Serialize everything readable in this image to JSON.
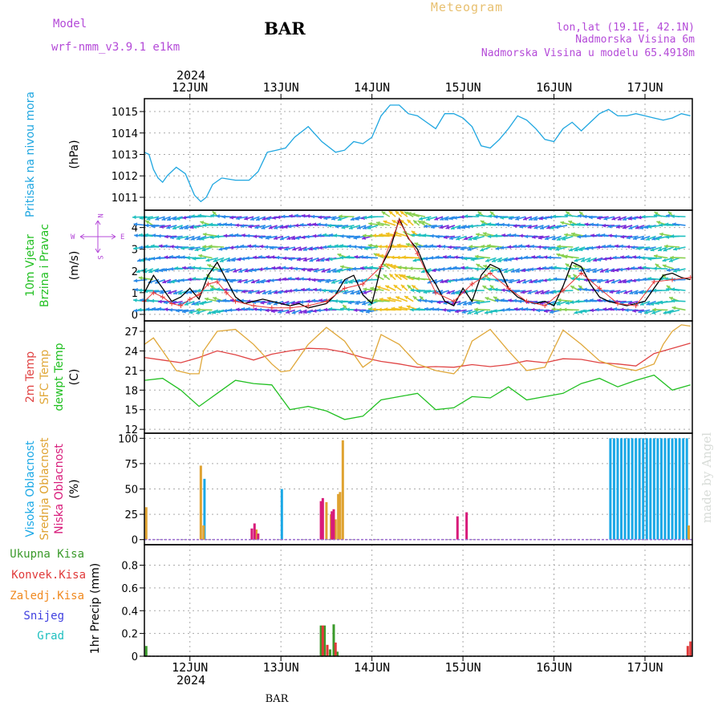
{
  "header": {
    "meteogram_label": "Meteogram",
    "model_label": "Model",
    "model_name": "wrf-nmm_v3.9.1 e1km",
    "station": "BAR",
    "lonlat": "lon,lat (19.1E, 42.1N)",
    "elevation": "Nadmorska Visina 6m",
    "model_elevation": "Nadmorska Visina u modelu 65.4918m",
    "year_top": "2024",
    "year_bottom": "2024",
    "footer_station": "BAR",
    "watermark": "made by Angel"
  },
  "colors": {
    "pressure": "#1ea6e0",
    "wind_speed": "#000000",
    "gust": "#e83838",
    "temp2m": "#e04444",
    "sfc_temp": "#e0a83a",
    "dewpt": "#22c022",
    "high_cloud": "#1aa8e6",
    "mid_cloud": "#dfa230",
    "low_cloud": "#d81b7a",
    "precip_total": "#3a9a2a",
    "precip_conv": "#e03a3a",
    "precip_frozen": "#f08a20",
    "snow": "#4040e0",
    "hail": "#20c0c0",
    "label_purple": "#b44ad8",
    "label_orange": "#e8c070"
  },
  "chart_data": [
    {
      "type": "line",
      "panel": "pressure",
      "ylabel_lines": [
        "Pritisak na nivou mora"
      ],
      "unit": "(hPa)",
      "ylim": [
        1010.4,
        1015.6
      ],
      "yticks": [
        1011,
        1012,
        1013,
        1014,
        1015
      ],
      "x_start_days": 0,
      "grid": true,
      "series": [
        {
          "color_key": "pressure",
          "x": [
            0,
            0.05,
            0.1,
            0.15,
            0.2,
            0.25,
            0.35,
            0.45,
            0.55,
            0.62,
            0.68,
            0.75,
            0.85,
            1.0,
            1.15,
            1.25,
            1.35,
            1.45,
            1.55,
            1.65,
            1.8,
            1.95,
            2.1,
            2.2,
            2.3,
            2.4,
            2.5,
            2.6,
            2.7,
            2.8,
            2.9,
            3.0,
            3.1,
            3.2,
            3.3,
            3.4,
            3.5,
            3.6,
            3.7,
            3.8,
            3.9,
            4.0,
            4.1,
            4.2,
            4.3,
            4.4,
            4.5,
            4.6,
            4.7,
            4.8,
            4.9,
            5.0,
            5.1,
            5.2,
            5.3,
            5.4,
            5.5,
            5.6,
            5.7,
            5.8,
            5.9,
            6.0
          ],
          "y": [
            1013.1,
            1013.0,
            1012.3,
            1011.9,
            1011.7,
            1012.0,
            1012.4,
            1012.1,
            1011.1,
            1010.8,
            1011.0,
            1011.6,
            1011.9,
            1011.8,
            1011.8,
            1012.2,
            1013.1,
            1013.2,
            1013.3,
            1013.8,
            1014.3,
            1013.6,
            1013.1,
            1013.2,
            1013.6,
            1013.5,
            1013.8,
            1014.8,
            1015.3,
            1015.3,
            1014.9,
            1014.8,
            1014.5,
            1014.2,
            1014.9,
            1014.9,
            1014.7,
            1014.3,
            1013.4,
            1013.3,
            1013.7,
            1014.2,
            1014.8,
            1014.6,
            1014.2,
            1013.7,
            1013.6,
            1014.2,
            1014.5,
            1014.1,
            1014.5,
            1014.9,
            1015.1,
            1014.8,
            1014.8,
            1014.9,
            1014.8,
            1014.7,
            1014.6,
            1014.7,
            1014.9,
            1014.8
          ]
        }
      ]
    },
    {
      "type": "line",
      "panel": "wind",
      "ylabel_lines": [
        "10m Vjetar",
        "Brzina i Pravac"
      ],
      "unit": "(m/s)",
      "compass": {
        "n": "N",
        "s": "S",
        "e": "E",
        "w": "W"
      },
      "ylim": [
        -0.3,
        4.8
      ],
      "yticks": [
        0,
        1,
        2,
        3,
        4
      ],
      "x_start_days": 0,
      "grid": true,
      "barbs": {
        "rows": [
          0.2,
          0.6,
          1.1,
          1.6,
          2.1,
          2.6,
          3.1,
          3.6,
          4.1,
          4.5
        ],
        "spacing_days": 0.065
      },
      "series": [
        {
          "color_key": "wind_speed",
          "x": [
            0,
            0.1,
            0.2,
            0.3,
            0.4,
            0.5,
            0.6,
            0.7,
            0.8,
            0.9,
            1.0,
            1.1,
            1.2,
            1.3,
            1.4,
            1.5,
            1.6,
            1.7,
            1.8,
            1.9,
            2.0,
            2.1,
            2.2,
            2.3,
            2.4,
            2.5,
            2.6,
            2.7,
            2.8,
            2.9,
            3.0,
            3.1,
            3.2,
            3.3,
            3.4,
            3.5,
            3.6,
            3.7,
            3.8,
            3.9,
            4.0,
            4.1,
            4.2,
            4.3,
            4.4,
            4.5,
            4.6,
            4.7,
            4.8,
            4.9,
            5.0,
            5.1,
            5.2,
            5.3,
            5.4,
            5.5,
            5.6,
            5.7,
            5.8,
            5.9,
            6.0
          ],
          "y": [
            1.0,
            1.8,
            1.2,
            0.6,
            0.8,
            1.2,
            0.7,
            1.8,
            2.4,
            1.6,
            0.8,
            0.5,
            0.6,
            0.7,
            0.6,
            0.5,
            0.4,
            0.5,
            0.3,
            0.4,
            0.5,
            0.9,
            1.6,
            1.8,
            0.9,
            0.5,
            2.2,
            3.0,
            4.4,
            3.5,
            3.0,
            2.0,
            1.4,
            0.6,
            0.4,
            1.2,
            0.6,
            1.8,
            2.3,
            2.1,
            1.2,
            0.8,
            0.6,
            0.5,
            0.6,
            0.4,
            1.3,
            2.4,
            2.2,
            1.4,
            0.8,
            0.6,
            0.5,
            0.4,
            0.5,
            0.6,
            1.2,
            1.8,
            1.9,
            1.7,
            1.6
          ]
        },
        {
          "color_key": "gust",
          "x": [
            0,
            0.1,
            0.2,
            0.3,
            0.4,
            0.5,
            0.6,
            0.7,
            0.8,
            0.9,
            1.0,
            1.2,
            1.4,
            1.6,
            1.8,
            2.0,
            2.2,
            2.4,
            2.6,
            2.8,
            3.0,
            3.2,
            3.4,
            3.6,
            3.8,
            4.0,
            4.2,
            4.4,
            4.6,
            4.8,
            5.0,
            5.2,
            5.4,
            5.6,
            5.8,
            6.0
          ],
          "y": [
            0.6,
            1.0,
            0.8,
            0.5,
            0.4,
            0.7,
            0.9,
            1.4,
            1.5,
            1.0,
            0.6,
            0.4,
            0.3,
            0.3,
            0.4,
            0.6,
            1.2,
            1.4,
            2.2,
            4.3,
            2.8,
            1.0,
            0.6,
            1.4,
            1.9,
            1.2,
            0.6,
            0.4,
            1.1,
            1.9,
            1.2,
            0.5,
            0.4,
            1.5,
            1.6,
            1.7
          ]
        }
      ]
    },
    {
      "type": "line",
      "panel": "temperature",
      "ylabel_lines": [
        "2m Temp",
        "SFC Temp",
        "dewpt Temp"
      ],
      "unit": "(C)",
      "ylim": [
        11.4,
        28.6
      ],
      "yticks": [
        12,
        15,
        18,
        21,
        24,
        27
      ],
      "x_start_days": 0,
      "grid": true,
      "series": [
        {
          "name": "2m Temp",
          "color_key": "temp2m",
          "x": [
            0,
            0.2,
            0.4,
            0.6,
            0.8,
            1.0,
            1.2,
            1.4,
            1.6,
            1.8,
            2.0,
            2.2,
            2.4,
            2.6,
            2.8,
            3.0,
            3.2,
            3.4,
            3.6,
            3.8,
            4.0,
            4.2,
            4.4,
            4.6,
            4.8,
            5.0,
            5.2,
            5.4,
            5.6,
            5.8,
            6.0
          ],
          "y": [
            23.0,
            22.6,
            22.2,
            23.0,
            24.0,
            23.4,
            22.6,
            23.5,
            24.0,
            24.4,
            24.3,
            23.8,
            23.0,
            22.4,
            22.0,
            21.5,
            21.6,
            21.5,
            21.9,
            21.6,
            21.9,
            22.5,
            22.2,
            22.8,
            22.7,
            22.2,
            22.0,
            21.7,
            23.6,
            24.4,
            25.2
          ]
        },
        {
          "name": "SFC Temp",
          "color_key": "sfc_temp",
          "x": [
            0,
            0.1,
            0.2,
            0.35,
            0.5,
            0.6,
            0.65,
            0.8,
            1.0,
            1.2,
            1.4,
            1.5,
            1.6,
            1.8,
            2.0,
            2.2,
            2.4,
            2.5,
            2.6,
            2.8,
            3.0,
            3.2,
            3.4,
            3.5,
            3.6,
            3.8,
            4.0,
            4.2,
            4.4,
            4.6,
            4.8,
            5.0,
            5.1,
            5.2,
            5.4,
            5.6,
            5.7,
            5.8,
            5.9,
            6.0
          ],
          "y": [
            25.0,
            26.0,
            24.0,
            21.0,
            20.5,
            20.5,
            24.0,
            27.0,
            27.3,
            25.0,
            22.0,
            20.8,
            21.0,
            25.0,
            27.6,
            25.5,
            21.5,
            22.5,
            26.5,
            25.0,
            22.0,
            21.0,
            20.5,
            22.0,
            25.5,
            27.3,
            24.0,
            21.0,
            21.5,
            27.2,
            25.0,
            22.5,
            22.0,
            21.5,
            21.0,
            22.0,
            25.0,
            27.0,
            28.0,
            27.8
          ]
        },
        {
          "name": "dewpt Temp",
          "color_key": "dewpt",
          "x": [
            0,
            0.2,
            0.4,
            0.6,
            0.8,
            1.0,
            1.2,
            1.4,
            1.6,
            1.8,
            2.0,
            2.2,
            2.4,
            2.6,
            2.8,
            3.0,
            3.2,
            3.4,
            3.6,
            3.8,
            4.0,
            4.2,
            4.4,
            4.6,
            4.8,
            5.0,
            5.2,
            5.4,
            5.6,
            5.8,
            6.0
          ],
          "y": [
            19.5,
            19.8,
            18.0,
            15.5,
            17.5,
            19.5,
            19.0,
            18.8,
            15.0,
            15.5,
            14.8,
            13.5,
            14.0,
            16.5,
            17.0,
            17.5,
            15.0,
            15.3,
            17.0,
            16.8,
            18.5,
            16.5,
            17.0,
            17.5,
            19.0,
            19.8,
            18.5,
            19.5,
            20.3,
            18.0,
            18.8
          ]
        }
      ]
    },
    {
      "type": "bar",
      "panel": "cloud",
      "ylabel_lines": [
        "Visoka Oblacnost",
        "Srednja Oblacnost",
        "Niska Oblacnost"
      ],
      "unit": "(%)",
      "ylim": [
        -5,
        105
      ],
      "yticks": [
        0,
        25,
        50,
        75,
        100
      ],
      "x_start_days": 0,
      "grid": true,
      "series": [
        {
          "name": "Visoka Oblacnost",
          "color_key": "high_cloud",
          "x": [
            0.66,
            1.51,
            5.12,
            5.16,
            5.2,
            5.24,
            5.28,
            5.32,
            5.36,
            5.4,
            5.44,
            5.48,
            5.52,
            5.56,
            5.6,
            5.64,
            5.68,
            5.72,
            5.76,
            5.8,
            5.84,
            5.88,
            5.92,
            5.96
          ],
          "y": [
            60,
            50,
            100,
            100,
            100,
            100,
            100,
            100,
            100,
            100,
            100,
            100,
            100,
            100,
            100,
            100,
            100,
            100,
            100,
            100,
            100,
            100,
            100,
            100
          ]
        },
        {
          "name": "Srednja Oblacnost",
          "color_key": "mid_cloud",
          "x": [
            0.02,
            0.62,
            0.65,
            1.23,
            2.0,
            2.05,
            2.1,
            2.13,
            2.15,
            2.18,
            5.98
          ],
          "y": [
            32,
            73,
            14,
            10,
            37,
            25,
            20,
            45,
            47,
            98,
            14
          ]
        },
        {
          "name": "Niska Oblacnost",
          "color_key": "low_cloud",
          "x": [
            1.18,
            1.21,
            1.25,
            1.94,
            1.96,
            2.06,
            2.08,
            3.44,
            3.54
          ],
          "y": [
            11,
            16,
            6,
            38,
            41,
            28,
            30,
            23,
            27
          ]
        }
      ]
    },
    {
      "type": "bar",
      "panel": "precip",
      "ylabel_lines": [
        "Ukupna Kisa",
        "Konvek.Kisa",
        "Zaledj.Kisa",
        "Snijeg",
        "Grad"
      ],
      "unit": "1hr Precip (mm)",
      "ylim": [
        0,
        0.98
      ],
      "yticks": [
        0,
        0.2,
        0.4,
        0.6,
        0.8
      ],
      "x_start_days": 0,
      "grid": true,
      "series": [
        {
          "name": "Ukupna Kisa",
          "color_key": "precip_total",
          "x": [
            0.02,
            1.94,
            1.98,
            2.04,
            2.08,
            2.12
          ],
          "y": [
            0.09,
            0.27,
            0.27,
            0.06,
            0.28,
            0.04
          ]
        },
        {
          "name": "Konvek.Kisa",
          "color_key": "precip_conv",
          "x": [
            1.96,
            2.01,
            2.1,
            5.97,
            6.0
          ],
          "y": [
            0.27,
            0.1,
            0.12,
            0.09,
            0.13
          ]
        }
      ]
    }
  ],
  "xaxis": {
    "x_start_days": 0,
    "xlim_days": [
      0,
      6.02
    ],
    "tick_days": [
      0.5,
      1.5,
      2.5,
      3.5,
      4.5,
      5.5
    ],
    "tick_labels": [
      "12JUN",
      "13JUN",
      "14JUN",
      "15JUN",
      "16JUN",
      "17JUN"
    ]
  }
}
